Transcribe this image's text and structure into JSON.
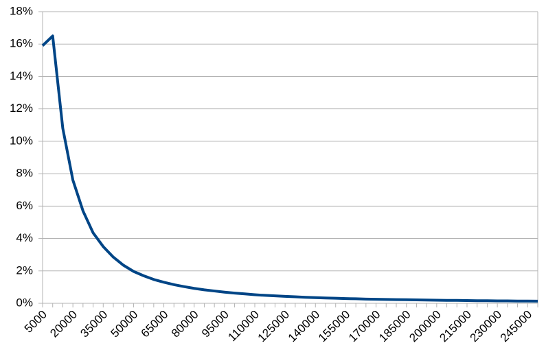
{
  "chart_data": {
    "type": "line",
    "categories": [
      "5000",
      null,
      null,
      "20000",
      null,
      null,
      "35000",
      null,
      null,
      "50000",
      null,
      null,
      "65000",
      null,
      null,
      "80000",
      null,
      null,
      "95000",
      null,
      null,
      "110000",
      null,
      null,
      "125000",
      null,
      null,
      "140000",
      null,
      null,
      "155000",
      null,
      null,
      "170000",
      null,
      null,
      "185000",
      null,
      null,
      "200000",
      null,
      null,
      "215000",
      null,
      null,
      "230000",
      null,
      null,
      "245000",
      null
    ],
    "values": [
      15.9,
      16.5,
      10.8,
      7.6,
      5.7,
      4.35,
      3.5,
      2.85,
      2.35,
      1.97,
      1.7,
      1.47,
      1.3,
      1.15,
      1.03,
      0.92,
      0.83,
      0.76,
      0.69,
      0.63,
      0.58,
      0.53,
      0.49,
      0.46,
      0.43,
      0.4,
      0.37,
      0.35,
      0.33,
      0.31,
      0.29,
      0.28,
      0.26,
      0.25,
      0.24,
      0.23,
      0.22,
      0.21,
      0.2,
      0.19,
      0.18,
      0.18,
      0.17,
      0.16,
      0.16,
      0.15,
      0.15,
      0.14,
      0.14,
      0.13
    ],
    "color": "#004586",
    "ylim": [
      0,
      18
    ],
    "yticks": [
      {
        "value": 0,
        "label": "0%"
      },
      {
        "value": 2,
        "label": "2%"
      },
      {
        "value": 4,
        "label": "4%"
      },
      {
        "value": 6,
        "label": "6%"
      },
      {
        "value": 8,
        "label": "8%"
      },
      {
        "value": 10,
        "label": "10%"
      },
      {
        "value": 12,
        "label": "12%"
      },
      {
        "value": 14,
        "label": "14%"
      },
      {
        "value": 16,
        "label": "16%"
      },
      {
        "value": 18,
        "label": "18%"
      }
    ],
    "grid": true
  }
}
